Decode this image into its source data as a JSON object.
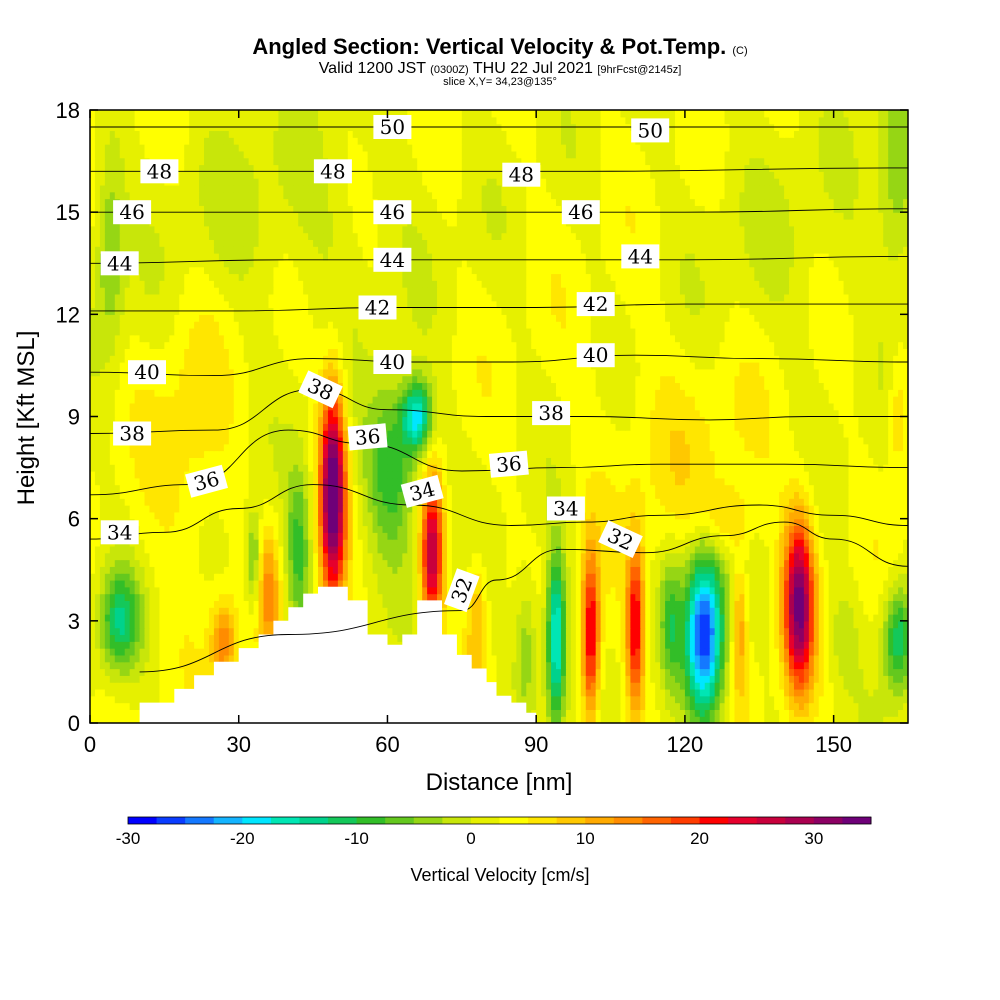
{
  "header": {
    "title": "Angled Section: Vertical Velocity & Pot.Temp.",
    "title_unit": "(C)",
    "valid_prefix": "Valid 1200 JST",
    "valid_utc": "(0300Z)",
    "valid_date": "THU 22 Jul 2021",
    "forecast": "[9hrFcst@2145z]",
    "slice": "slice X,Y= 34,23@135°"
  },
  "chart_data": {
    "type": "heatmap",
    "xlabel": "Distance [nm]",
    "ylabel": "Height [Kft MSL]",
    "xlim": [
      0,
      165
    ],
    "ylim": [
      0,
      18
    ],
    "x_ticks": [
      0,
      30,
      60,
      90,
      120,
      150
    ],
    "y_ticks": [
      0,
      3,
      6,
      9,
      12,
      15,
      18
    ],
    "x_tick_labels": [
      "0",
      "30",
      "60",
      "90",
      "120",
      "150"
    ],
    "y_tick_labels": [
      "0",
      "3",
      "6",
      "9",
      "12",
      "15",
      "18"
    ],
    "colorbar": {
      "label": "Vertical Velocity [cm/s]",
      "min": -30,
      "max": 35,
      "step": 2.5,
      "ticks": [
        -30,
        -20,
        -10,
        0,
        10,
        20,
        30
      ],
      "tick_labels": [
        "-30",
        "-20",
        "-10",
        "0",
        "10",
        "20",
        "30"
      ],
      "colors": [
        "#0000ff",
        "#0a3cff",
        "#1478ff",
        "#14b4ff",
        "#00e6ff",
        "#00e6b4",
        "#00d28c",
        "#14c85a",
        "#32be28",
        "#64c81e",
        "#96d614",
        "#c8e60a",
        "#e6f000",
        "#ffff00",
        "#ffe600",
        "#ffc800",
        "#ffaa00",
        "#ff8c00",
        "#ff6400",
        "#ff3c00",
        "#ff0000",
        "#e6002d",
        "#c8003c",
        "#aa0050",
        "#8c0064",
        "#6e0078"
      ]
    },
    "terrain_nm_kft": [
      [
        10,
        0.6
      ],
      [
        17,
        0.6
      ],
      [
        17,
        1.0
      ],
      [
        21,
        1.0
      ],
      [
        21,
        1.4
      ],
      [
        25,
        1.4
      ],
      [
        25,
        1.8
      ],
      [
        30,
        1.8
      ],
      [
        30,
        2.2
      ],
      [
        34,
        2.2
      ],
      [
        34,
        2.6
      ],
      [
        37,
        2.6
      ],
      [
        37,
        3.0
      ],
      [
        40,
        3.0
      ],
      [
        40,
        3.4
      ],
      [
        43,
        3.4
      ],
      [
        43,
        3.8
      ],
      [
        46,
        3.8
      ],
      [
        46,
        4.0
      ],
      [
        52,
        4.0
      ],
      [
        52,
        3.6
      ],
      [
        56,
        3.6
      ],
      [
        56,
        2.6
      ],
      [
        60,
        2.6
      ],
      [
        60,
        2.3
      ],
      [
        63,
        2.3
      ],
      [
        63,
        2.6
      ],
      [
        66,
        2.6
      ],
      [
        66,
        3.6
      ],
      [
        71,
        3.6
      ],
      [
        71,
        2.6
      ],
      [
        74,
        2.6
      ],
      [
        74,
        2.0
      ],
      [
        77,
        2.0
      ],
      [
        77,
        1.6
      ],
      [
        80,
        1.6
      ],
      [
        80,
        1.2
      ],
      [
        82,
        1.2
      ],
      [
        82,
        0.8
      ],
      [
        85,
        0.8
      ],
      [
        85,
        0.6
      ],
      [
        88,
        0.6
      ],
      [
        88,
        0.3
      ],
      [
        90,
        0.3
      ],
      [
        90,
        0
      ]
    ],
    "velocity_cells": [
      {
        "x": 49,
        "y": 6.8,
        "rx": 2.5,
        "ry": 3.0,
        "w": 34
      },
      {
        "x": 69,
        "y": 5.0,
        "rx": 2.2,
        "ry": 2.2,
        "w": 26
      },
      {
        "x": 61,
        "y": 7.5,
        "rx": 5.5,
        "ry": 2.5,
        "w": -13
      },
      {
        "x": 66,
        "y": 9.0,
        "rx": 3.0,
        "ry": 1.0,
        "w": -20
      },
      {
        "x": 94,
        "y": 2.5,
        "rx": 2.0,
        "ry": 2.5,
        "w": -22
      },
      {
        "x": 101,
        "y": 2.5,
        "rx": 1.8,
        "ry": 2.5,
        "w": 22
      },
      {
        "x": 110,
        "y": 2.8,
        "rx": 1.8,
        "ry": 2.5,
        "w": 20
      },
      {
        "x": 124,
        "y": 2.6,
        "rx": 4.0,
        "ry": 2.5,
        "w": -30
      },
      {
        "x": 131,
        "y": 2.8,
        "rx": 1.5,
        "ry": 2.0,
        "w": 10
      },
      {
        "x": 143,
        "y": 3.5,
        "rx": 3.0,
        "ry": 2.5,
        "w": 30
      },
      {
        "x": 6,
        "y": 3.0,
        "rx": 4.0,
        "ry": 1.5,
        "w": -14
      },
      {
        "x": 163,
        "y": 2.5,
        "rx": 3.0,
        "ry": 1.6,
        "w": -15
      },
      {
        "x": 27,
        "y": 2.4,
        "rx": 2.5,
        "ry": 1.2,
        "w": 12
      },
      {
        "x": 36,
        "y": 3.8,
        "rx": 2.2,
        "ry": 1.8,
        "w": 10
      },
      {
        "x": 33,
        "y": 4.8,
        "rx": 1.5,
        "ry": 1.5,
        "w": -10
      },
      {
        "x": 42,
        "y": 5.0,
        "rx": 2.5,
        "ry": 2.5,
        "w": -11
      },
      {
        "x": 78,
        "y": 3.0,
        "rx": 2.0,
        "ry": 2.0,
        "w": 8
      },
      {
        "x": 88,
        "y": 2.2,
        "rx": 2.5,
        "ry": 2.0,
        "w": -8
      },
      {
        "x": 117,
        "y": 3.0,
        "rx": 2.0,
        "ry": 2.0,
        "w": -9
      },
      {
        "x": 152,
        "y": 2.5,
        "rx": 3.0,
        "ry": 1.5,
        "w": -4
      },
      {
        "x": 20,
        "y": 8.0,
        "rx": 8.0,
        "ry": 4.0,
        "w": 4
      },
      {
        "x": 40,
        "y": 15.0,
        "rx": 25.0,
        "ry": 3.0,
        "w": -3
      },
      {
        "x": 120,
        "y": 8.0,
        "rx": 18.0,
        "ry": 3.5,
        "w": 3
      },
      {
        "x": 140,
        "y": 14.0,
        "rx": 20.0,
        "ry": 4.0,
        "w": -2
      },
      {
        "x": 163,
        "y": 16.0,
        "rx": 4.0,
        "ry": 3.0,
        "w": -8
      },
      {
        "x": 163,
        "y": 9.0,
        "rx": 2.0,
        "ry": 2.0,
        "w": 6
      },
      {
        "x": 4,
        "y": 14.0,
        "rx": 3.0,
        "ry": 3.0,
        "w": -8
      },
      {
        "x": 128,
        "y": 6.0,
        "rx": 5.0,
        "ry": 1.0,
        "w": 6
      }
    ],
    "theta_contours": [
      {
        "theta": 32,
        "pts": [
          [
            10,
            1.5
          ],
          [
            40,
            2.6
          ],
          [
            75,
            3.3
          ],
          [
            82,
            4.2
          ],
          [
            95,
            5.1
          ],
          [
            112,
            5.0
          ],
          [
            128,
            5.5
          ],
          [
            140,
            5.9
          ],
          [
            150,
            5.4
          ],
          [
            165,
            4.6
          ]
        ]
      },
      {
        "theta": 34,
        "pts": [
          [
            0,
            5.4
          ],
          [
            15,
            5.6
          ],
          [
            30,
            6.3
          ],
          [
            45,
            7.0
          ],
          [
            65,
            6.4
          ],
          [
            85,
            5.8
          ],
          [
            100,
            5.9
          ],
          [
            115,
            6.1
          ],
          [
            135,
            6.4
          ],
          [
            150,
            6.1
          ],
          [
            165,
            5.8
          ]
        ]
      },
      {
        "theta": 36,
        "pts": [
          [
            0,
            6.7
          ],
          [
            20,
            7.0
          ],
          [
            40,
            8.6
          ],
          [
            55,
            8.2
          ],
          [
            75,
            7.4
          ],
          [
            95,
            7.5
          ],
          [
            115,
            7.6
          ],
          [
            140,
            7.6
          ],
          [
            165,
            7.5
          ]
        ]
      },
      {
        "theta": 38,
        "pts": [
          [
            0,
            8.5
          ],
          [
            25,
            8.6
          ],
          [
            45,
            9.8
          ],
          [
            60,
            9.2
          ],
          [
            80,
            9.0
          ],
          [
            100,
            9.0
          ],
          [
            125,
            8.9
          ],
          [
            145,
            9.0
          ],
          [
            165,
            9.0
          ]
        ]
      },
      {
        "theta": 40,
        "pts": [
          [
            0,
            10.3
          ],
          [
            25,
            10.2
          ],
          [
            45,
            10.7
          ],
          [
            65,
            10.6
          ],
          [
            85,
            10.6
          ],
          [
            110,
            10.8
          ],
          [
            135,
            10.7
          ],
          [
            165,
            10.6
          ]
        ]
      },
      {
        "theta": 42,
        "pts": [
          [
            0,
            12.1
          ],
          [
            30,
            12.1
          ],
          [
            60,
            12.2
          ],
          [
            90,
            12.2
          ],
          [
            120,
            12.3
          ],
          [
            165,
            12.3
          ]
        ]
      },
      {
        "theta": 44,
        "pts": [
          [
            0,
            13.5
          ],
          [
            40,
            13.6
          ],
          [
            80,
            13.6
          ],
          [
            120,
            13.6
          ],
          [
            165,
            13.7
          ]
        ]
      },
      {
        "theta": 46,
        "pts": [
          [
            0,
            15.0
          ],
          [
            40,
            15.0
          ],
          [
            80,
            15.0
          ],
          [
            120,
            15.0
          ],
          [
            165,
            15.1
          ]
        ]
      },
      {
        "theta": 48,
        "pts": [
          [
            0,
            16.2
          ],
          [
            50,
            16.2
          ],
          [
            100,
            16.2
          ],
          [
            165,
            16.3
          ]
        ]
      },
      {
        "theta": 50,
        "pts": [
          [
            0,
            17.5
          ],
          [
            60,
            17.5
          ],
          [
            120,
            17.5
          ],
          [
            165,
            17.5
          ]
        ]
      }
    ],
    "contour_labels": [
      {
        "text": "50",
        "x": 61,
        "y": 17.5,
        "rot": 0
      },
      {
        "text": "50",
        "x": 113,
        "y": 17.4,
        "rot": 0
      },
      {
        "text": "48",
        "x": 14,
        "y": 16.2,
        "rot": 0
      },
      {
        "text": "48",
        "x": 49,
        "y": 16.2,
        "rot": 0
      },
      {
        "text": "48",
        "x": 87,
        "y": 16.1,
        "rot": 0
      },
      {
        "text": "46",
        "x": 8.5,
        "y": 15.0,
        "rot": 0
      },
      {
        "text": "46",
        "x": 61,
        "y": 15.0,
        "rot": 0
      },
      {
        "text": "46",
        "x": 99,
        "y": 15.0,
        "rot": 0
      },
      {
        "text": "44",
        "x": 6,
        "y": 13.5,
        "rot": 0
      },
      {
        "text": "44",
        "x": 61,
        "y": 13.6,
        "rot": 0
      },
      {
        "text": "44",
        "x": 111,
        "y": 13.7,
        "rot": 0
      },
      {
        "text": "42",
        "x": 58,
        "y": 12.2,
        "rot": 0
      },
      {
        "text": "42",
        "x": 102,
        "y": 12.3,
        "rot": 0
      },
      {
        "text": "40",
        "x": 11.5,
        "y": 10.3,
        "rot": 0
      },
      {
        "text": "40",
        "x": 61,
        "y": 10.6,
        "rot": 0
      },
      {
        "text": "40",
        "x": 102,
        "y": 10.8,
        "rot": 0
      },
      {
        "text": "38",
        "x": 8.5,
        "y": 8.5,
        "rot": 0
      },
      {
        "text": "38",
        "x": 46.5,
        "y": 9.8,
        "rot": 25
      },
      {
        "text": "38",
        "x": 93,
        "y": 9.1,
        "rot": 0
      },
      {
        "text": "36",
        "x": 23.5,
        "y": 7.1,
        "rot": -15
      },
      {
        "text": "36",
        "x": 56,
        "y": 8.4,
        "rot": -5
      },
      {
        "text": "36",
        "x": 84.5,
        "y": 7.6,
        "rot": -5
      },
      {
        "text": "34",
        "x": 6,
        "y": 5.6,
        "rot": 0
      },
      {
        "text": "34",
        "x": 67,
        "y": 6.8,
        "rot": -15
      },
      {
        "text": "34",
        "x": 96,
        "y": 6.3,
        "rot": 0
      },
      {
        "text": "32",
        "x": 75,
        "y": 3.9,
        "rot": -70
      },
      {
        "text": "32",
        "x": 107,
        "y": 5.4,
        "rot": 25
      }
    ]
  }
}
